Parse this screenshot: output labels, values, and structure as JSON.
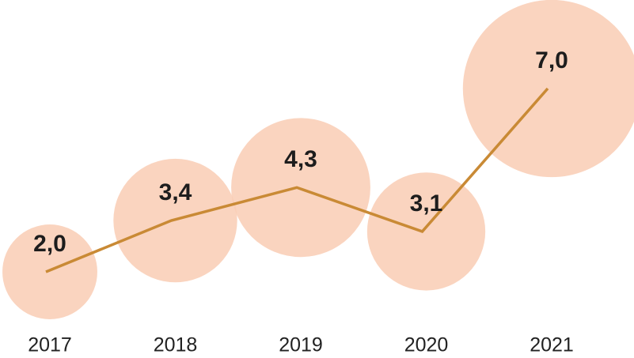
{
  "chart_data": {
    "type": "line",
    "categories": [
      "2017",
      "2018",
      "2019",
      "2020",
      "2021"
    ],
    "values": [
      2.0,
      3.4,
      4.3,
      3.1,
      7.0
    ],
    "value_labels": [
      "2,0",
      "3,4",
      "4,3",
      "3,1",
      "7,0"
    ],
    "color": "#c98a35",
    "bubble_color": "#f9cdb4"
  }
}
